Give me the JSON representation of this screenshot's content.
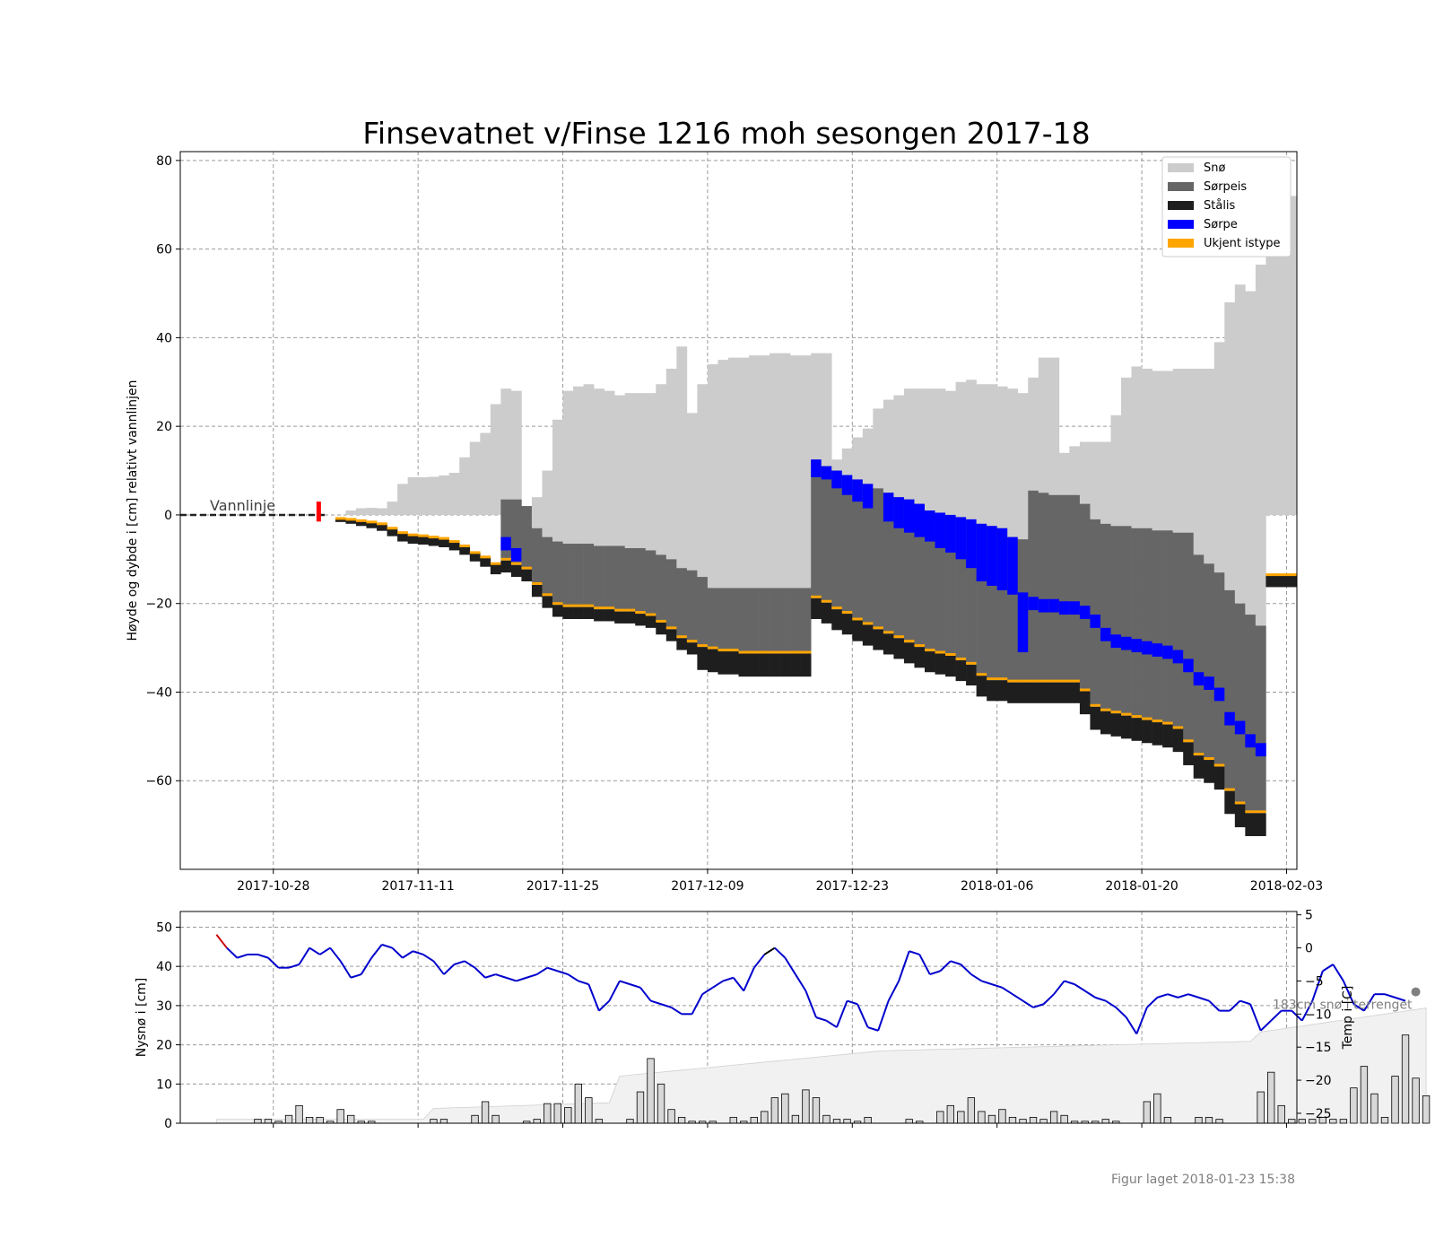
{
  "title": "Finsevatnet v/Finse 1216 moh sesongen 2017-18",
  "footer": "Figur laget 2018-01-23 15:38",
  "colors": {
    "snow": "#cccccc",
    "slush_ice": "#666666",
    "black_ice": "#1e1e1e",
    "slush": "#0000ff",
    "unknown_ice": "#ffa500",
    "temp_line": "#0000cc",
    "temp_warm": "#cc0000",
    "temp_mild": "#000000",
    "snow_fill": "#f1f1f1"
  },
  "chart_data": [
    {
      "type": "area",
      "title": "Finsevatnet v/Finse 1216 moh sesongen 2017-18",
      "ylabel": "Høyde og dybde i [cm] relativt vannlinjen",
      "xlabel": "",
      "ylim": [
        -80,
        82
      ],
      "xlim": [
        "2017-10-19",
        "2018-02-04"
      ],
      "x_ticks": [
        "2017-10-28",
        "2017-11-11",
        "2017-11-25",
        "2017-12-09",
        "2017-12-23",
        "2018-01-06",
        "2018-01-20",
        "2018-02-03"
      ],
      "y_ticks": [
        80,
        60,
        40,
        20,
        0,
        -20,
        -40,
        -60
      ],
      "grid": true,
      "legend_position": "top-right",
      "legend": [
        "Snø",
        "Sørpeis",
        "Stålis",
        "Sørpe",
        "Ukjent istype"
      ],
      "waterline_label": "Vannlinje",
      "first_ice_marker": "2017-11-01",
      "layers_description": "Per day (from 2017-11-02 to 2018-01-31): top of snow above waterline, then downward: slush ice (Sørpeis), slush (Sørpe), unknown ice type, black ice (Stålis). Values in cm.",
      "series": [
        {
          "name": "Snø",
          "x_start": "2017-11-02",
          "values": [
            0,
            0,
            1,
            1.5,
            1.6,
            1.5,
            3,
            7,
            8.5,
            8.5,
            8.6,
            8.9,
            9.5,
            13,
            16.5,
            18.5,
            25,
            28.5,
            28,
            0,
            4,
            10,
            21.5,
            28,
            29,
            29.5,
            28.5,
            28,
            27,
            27.5,
            27.5,
            27.5,
            29.5,
            33,
            38,
            23,
            29.5,
            34,
            35,
            35.5,
            35.5,
            36,
            36,
            36.5,
            36.5,
            36,
            36,
            36.5,
            36.5,
            12.5,
            15,
            17.5,
            19.5,
            24,
            26,
            27,
            28.5,
            28.5,
            28.5,
            28.5,
            28,
            30,
            30.5,
            29.5,
            29.5,
            29,
            28.5,
            27.5,
            31,
            35.5,
            35.5,
            14,
            15.5,
            16.5,
            16.5,
            16.5,
            22.5,
            31,
            33.5,
            33,
            32.5,
            32.5,
            33,
            33,
            33,
            33,
            39,
            48,
            52,
            50.5,
            56.5,
            60,
            68,
            72
          ]
        },
        {
          "name": "Sørpeis",
          "x_start": "2017-11-19",
          "values": [
            3.5,
            3.5,
            2,
            -3,
            -5,
            -6,
            -6.5,
            -6.5,
            -6.5,
            -7,
            -7,
            -7,
            -7.5,
            -7.5,
            -8,
            -9,
            -10,
            -12,
            -12.5,
            -14,
            -16.5,
            -16.5,
            -16.5,
            -16.5,
            -16.5,
            -16.5,
            -16.5,
            -16.5,
            -16.5,
            -16.5,
            12.5,
            11,
            10,
            9,
            8,
            7,
            6,
            5,
            4,
            3.5,
            2.5,
            1,
            0.5,
            0,
            -0.5,
            -1,
            -2,
            -2.5,
            -3,
            -5,
            -5.5,
            5.5,
            5,
            4.5,
            4.5,
            4.5,
            2.5,
            -1,
            -2,
            -2.5,
            -2.5,
            -3,
            -3,
            -3.5,
            -3.5,
            -4,
            -4,
            -9,
            -11,
            -13,
            -17,
            -20,
            -22.5,
            -25
          ]
        },
        {
          "name": "Sørpe",
          "x_start": "2017-11-19",
          "values": [
            -6.5,
            -9,
            0,
            0,
            0,
            0,
            0,
            0,
            0,
            0,
            0,
            0,
            0,
            0,
            0,
            0,
            0,
            0,
            0,
            0,
            0,
            0,
            0,
            0,
            0,
            0,
            0,
            0,
            0,
            0,
            8.5,
            8,
            6,
            4.5,
            3,
            1.5,
            0,
            -1.5,
            -3,
            -4,
            -5,
            -6,
            -7.5,
            -8.5,
            -10,
            -12,
            -15,
            -16,
            -17,
            -18,
            -19,
            -20,
            -20.5,
            -20.5,
            -21,
            -21,
            -22,
            -24,
            -27,
            -28.5,
            -29,
            -29.5,
            -30,
            -30.5,
            -31,
            -32,
            -34,
            -37,
            -38,
            -40.5,
            -46,
            -48,
            -51,
            -53
          ]
        }
      ]
    },
    {
      "type": "bar",
      "ylabel": "Nysnø i [cm]",
      "ylabel_right": "Temp i [C]",
      "ylim": [
        0,
        54
      ],
      "ylim_right": [
        -26.5,
        5.5
      ],
      "y_ticks": [
        50,
        40,
        30,
        20,
        10,
        0
      ],
      "y_ticks_right": [
        5,
        0,
        -5,
        -10,
        -15,
        -20,
        -25
      ],
      "grid": true,
      "annotation": "183cm snø i terrenget",
      "x_start": "2017-10-22",
      "series": [
        {
          "name": "Nysnø",
          "values": [
            0,
            0,
            0,
            0,
            1,
            1,
            0.5,
            2,
            4.5,
            1.5,
            1.5,
            0.5,
            3.5,
            2,
            0.5,
            0.5,
            0,
            0,
            0,
            0,
            0,
            1,
            1,
            0,
            0,
            2,
            5.5,
            2,
            0,
            0,
            0.5,
            1,
            5,
            5,
            4,
            10,
            6.5,
            1,
            0,
            0,
            1,
            8,
            16.5,
            10,
            3.5,
            1.5,
            0.5,
            0.5,
            0.5,
            0,
            1.5,
            0.5,
            1.5,
            3,
            6.5,
            7.5,
            2,
            8.5,
            6.5,
            2,
            1,
            1,
            0.5,
            1.5,
            0,
            0,
            0,
            1,
            0.5,
            0,
            3,
            4.5,
            3,
            6.5,
            3,
            2,
            3.5,
            1.5,
            1,
            1.5,
            1,
            3,
            2,
            0.5,
            0.5,
            0.5,
            1,
            0.5,
            0,
            0,
            5.5,
            7.5,
            1.5,
            0,
            0,
            1.5,
            1.5,
            1,
            0,
            0,
            0,
            8,
            13,
            4.5,
            1,
            1,
            1,
            1.5,
            1,
            1,
            9,
            14.5,
            7.5,
            1.5,
            12,
            22.5,
            11.5,
            7
          ]
        },
        {
          "name": "Temp",
          "values": [
            2,
            0,
            -1.5,
            -1,
            -1,
            -1.5,
            -3,
            -3,
            -2.5,
            0,
            -1,
            0,
            -2,
            -4.5,
            -4,
            -1.5,
            0.5,
            0,
            -1.5,
            -0.5,
            -1,
            -2,
            -4,
            -2.5,
            -2,
            -3,
            -4.5,
            -4,
            -4.5,
            -5,
            -4.5,
            -4,
            -3,
            -3.5,
            -4,
            -5,
            -5.5,
            -9.5,
            -8,
            -5,
            -5.5,
            -6,
            -8,
            -8.5,
            -9,
            -10,
            -10,
            -7,
            -6,
            -5,
            -4.5,
            -6.5,
            -3,
            -1,
            0,
            -1.5,
            -4,
            -6.5,
            -10.5,
            -11,
            -12,
            -8,
            -8.5,
            -12,
            -12.5,
            -8,
            -5,
            -0.5,
            -1,
            -4,
            -3.5,
            -2,
            -2.5,
            -4,
            -5,
            -5.5,
            -6,
            -7,
            -8,
            -9,
            -8.5,
            -7,
            -5,
            -5.5,
            -6.5,
            -7.5,
            -8,
            -9,
            -10.5,
            -13,
            -9,
            -7.5,
            -7,
            -7.5,
            -7,
            -7.5,
            -8,
            -9.5,
            -9.5,
            -8,
            -8.5,
            -12.5,
            -11,
            -9.5,
            -9.5,
            -11,
            -8,
            -3.5,
            -2.5,
            -5,
            -8.5,
            -9.5,
            -7,
            -7,
            -7.5,
            -8
          ]
        }
      ]
    }
  ]
}
